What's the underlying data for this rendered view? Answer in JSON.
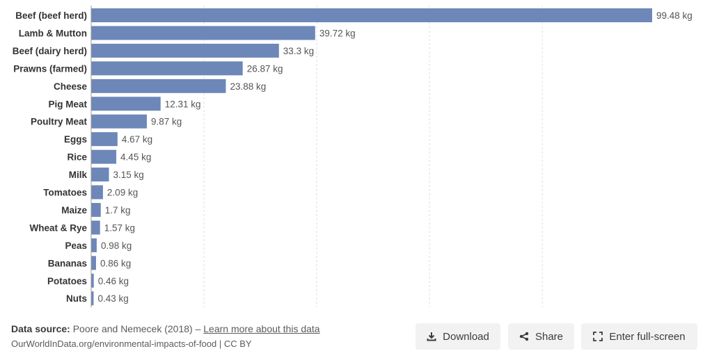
{
  "chart_data": {
    "type": "bar",
    "orientation": "horizontal",
    "categories": [
      "Beef (beef herd)",
      "Lamb & Mutton",
      "Beef (dairy herd)",
      "Prawns (farmed)",
      "Cheese",
      "Pig Meat",
      "Poultry Meat",
      "Eggs",
      "Rice",
      "Milk",
      "Tomatoes",
      "Maize",
      "Wheat & Rye",
      "Peas",
      "Bananas",
      "Potatoes",
      "Nuts"
    ],
    "values": [
      99.48,
      39.72,
      33.3,
      26.87,
      23.88,
      12.31,
      9.87,
      4.67,
      4.45,
      3.15,
      2.09,
      1.7,
      1.57,
      0.98,
      0.86,
      0.46,
      0.43
    ],
    "value_labels": [
      "99.48 kg",
      "39.72 kg",
      "33.3 kg",
      "26.87 kg",
      "23.88 kg",
      "12.31 kg",
      "9.87 kg",
      "4.67 kg",
      "4.45 kg",
      "3.15 kg",
      "2.09 kg",
      "1.7 kg",
      "1.57 kg",
      "0.98 kg",
      "0.86 kg",
      "0.46 kg",
      "0.43 kg"
    ],
    "unit": "kg",
    "xlim": [
      0,
      100
    ],
    "grid_ticks": [
      20,
      40,
      60,
      80
    ],
    "grid": true,
    "bar_color": "#6d87b8"
  },
  "footer": {
    "source_label": "Data source:",
    "source_text": "Poore and Nemecek (2018) –",
    "learn_more": "Learn more about this data",
    "credit": "OurWorldInData.org/environmental-impacts-of-food | CC BY"
  },
  "buttons": {
    "download": {
      "label": "Download",
      "icon": "download-icon"
    },
    "share": {
      "label": "Share",
      "icon": "share-icon"
    },
    "fullscreen": {
      "label": "Enter full-screen",
      "icon": "fullscreen-icon"
    }
  }
}
